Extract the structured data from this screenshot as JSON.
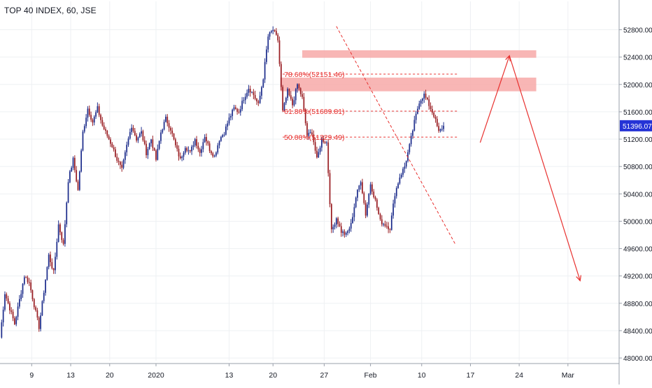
{
  "chart_data": {
    "type": "candlestick",
    "title": "TOP 40 INDEX, 60, JSE",
    "y_axis": {
      "ticks": [
        48000,
        48400,
        48800,
        49200,
        49600,
        50000,
        50400,
        50800,
        51200,
        51600,
        52000,
        52400,
        52800
      ],
      "tick_labels": [
        "48000.00",
        "48400.00",
        "48800.00",
        "49200.00",
        "49600.00",
        "50000.00",
        "50400.00",
        "50800.00",
        "51200.00",
        "51600.00",
        "52000.00",
        "52400.00",
        "52800.00"
      ],
      "ylim": [
        47960,
        53010
      ]
    },
    "x_axis": {
      "xlim": [
        0,
        127
      ],
      "ticks": [
        {
          "label": "9",
          "x": 6.5
        },
        {
          "label": "13",
          "x": 14.5
        },
        {
          "label": "20",
          "x": 22.5
        },
        {
          "label": "2020",
          "x": 32
        },
        {
          "label": "13",
          "x": 47
        },
        {
          "label": "20",
          "x": 56
        },
        {
          "label": "27",
          "x": 66.5
        },
        {
          "label": "Feb",
          "x": 76
        },
        {
          "label": "10",
          "x": 86.5
        },
        {
          "label": "17",
          "x": 96.5
        },
        {
          "label": "24",
          "x": 106.5
        },
        {
          "label": "Mar",
          "x": 116.5
        }
      ]
    },
    "price_path": [
      [
        0,
        48300
      ],
      [
        1,
        48950
      ],
      [
        3,
        48500
      ],
      [
        5,
        49200
      ],
      [
        6,
        49100
      ],
      [
        8,
        48450
      ],
      [
        10,
        49500
      ],
      [
        11,
        49250
      ],
      [
        12,
        49950
      ],
      [
        13,
        49650
      ],
      [
        14,
        50600
      ],
      [
        15,
        50900
      ],
      [
        16,
        50450
      ],
      [
        17,
        51300
      ],
      [
        18,
        51650
      ],
      [
        19,
        51450
      ],
      [
        20,
        51650
      ],
      [
        21,
        51400
      ],
      [
        23,
        51100
      ],
      [
        24,
        50900
      ],
      [
        25,
        50750
      ],
      [
        26,
        51100
      ],
      [
        27,
        51400
      ],
      [
        28,
        51200
      ],
      [
        29,
        51300
      ],
      [
        30,
        51000
      ],
      [
        31,
        51200
      ],
      [
        32,
        50900
      ],
      [
        33,
        51300
      ],
      [
        34,
        51500
      ],
      [
        35,
        51350
      ],
      [
        36,
        51100
      ],
      [
        37,
        50900
      ],
      [
        38,
        51100
      ],
      [
        39,
        51000
      ],
      [
        40,
        51200
      ],
      [
        41,
        51000
      ],
      [
        42,
        51250
      ],
      [
        43,
        51050
      ],
      [
        44,
        50950
      ],
      [
        45,
        51200
      ],
      [
        46,
        51300
      ],
      [
        47,
        51500
      ],
      [
        48,
        51650
      ],
      [
        49,
        51600
      ],
      [
        50,
        51800
      ],
      [
        51,
        51950
      ],
      [
        52,
        51850
      ],
      [
        53,
        51700
      ],
      [
        54,
        52100
      ],
      [
        55,
        52700
      ],
      [
        56,
        52800
      ],
      [
        57,
        52650
      ],
      [
        58,
        51600
      ],
      [
        59,
        51900
      ],
      [
        60,
        51700
      ],
      [
        61,
        52000
      ],
      [
        62,
        51800
      ],
      [
        63,
        51250
      ],
      [
        64,
        51300
      ],
      [
        65,
        50900
      ],
      [
        66,
        51200
      ],
      [
        67,
        51150
      ],
      [
        68,
        49850
      ],
      [
        69,
        50050
      ],
      [
        70,
        49850
      ],
      [
        71,
        49800
      ],
      [
        72,
        49950
      ],
      [
        73,
        50350
      ],
      [
        74,
        50600
      ],
      [
        75,
        50100
      ],
      [
        76,
        50550
      ],
      [
        77,
        50300
      ],
      [
        78,
        50000
      ],
      [
        79,
        49950
      ],
      [
        80,
        49900
      ],
      [
        81,
        50400
      ],
      [
        82,
        50650
      ],
      [
        83,
        50800
      ],
      [
        84,
        51100
      ],
      [
        85,
        51450
      ],
      [
        86,
        51750
      ],
      [
        87,
        51850
      ],
      [
        88,
        51700
      ],
      [
        89,
        51550
      ],
      [
        90,
        51300
      ],
      [
        91,
        51396
      ]
    ],
    "last_price_label": "51396.07",
    "fib_levels": [
      {
        "label": "78.60%(52151.46)",
        "value": 52151.46,
        "x_start": 58,
        "x_end": 94
      },
      {
        "label": "61.80%(51609.81)",
        "value": 51609.81,
        "x_start": 58,
        "x_end": 94
      },
      {
        "label": "50.00%(51229.49)",
        "value": 51229.49,
        "x_start": 58,
        "x_end": 94
      }
    ],
    "zones": [
      {
        "name": "upper resistance zone",
        "x_start": 62,
        "x_end": 110,
        "y_low": 52390,
        "y_high": 52500
      },
      {
        "name": "lower resistance zone",
        "x_start": 57.5,
        "x_end": 110,
        "y_low": 51900,
        "y_high": 52100
      }
    ],
    "trendline": {
      "start": {
        "x": 69,
        "y": 52850
      },
      "end": {
        "x": 93.5,
        "y": 49650
      }
    },
    "projection_path": [
      {
        "x": 98.5,
        "y": 51150
      },
      {
        "x": 104.5,
        "y": 52420
      },
      {
        "x": 119,
        "y": 49130
      }
    ],
    "colors": {
      "up": "#1e2e8c",
      "down": "#9a1f24",
      "zone": "#f7a9a8",
      "annotation": "#e8312f",
      "last_price": "#2533d6",
      "grid": "#eef0f3",
      "axis_text": "#131722"
    }
  }
}
